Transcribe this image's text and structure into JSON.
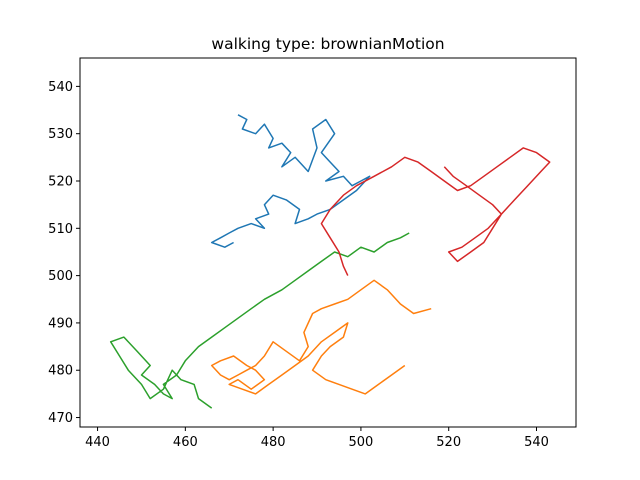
{
  "chart_data": {
    "type": "line",
    "title": "walking type: brownianMotion",
    "xlabel": "",
    "ylabel": "",
    "xlim": [
      436,
      549
    ],
    "ylim": [
      468,
      546
    ],
    "xticks": [
      440,
      460,
      480,
      500,
      520,
      540
    ],
    "yticks": [
      470,
      480,
      490,
      500,
      510,
      520,
      530,
      540
    ],
    "grid": false,
    "legend": "none",
    "series": [
      {
        "color": "#1f77b4",
        "x": [
          472,
          474,
          473,
          476,
          478,
          480,
          479,
          482,
          484,
          482,
          485,
          488,
          490,
          489,
          492,
          494,
          491,
          493,
          495,
          492,
          496,
          498,
          500,
          502,
          499,
          496,
          493,
          490,
          488,
          485,
          486,
          483,
          480,
          478,
          479,
          476,
          478,
          475,
          472,
          470,
          468,
          466,
          469,
          471
        ],
        "y": [
          534,
          533,
          531,
          530,
          532,
          529,
          527,
          528,
          526,
          523,
          525,
          522,
          527,
          531,
          533,
          530,
          526,
          524,
          522,
          520,
          521,
          519,
          520,
          521,
          518,
          516,
          514,
          513,
          512,
          511,
          514,
          516,
          517,
          515,
          513,
          512,
          510,
          511,
          510,
          509,
          508,
          507,
          506,
          507
        ]
      },
      {
        "color": "#ff7f0e",
        "x": [
          516,
          512,
          509,
          506,
          503,
          500,
          497,
          494,
          491,
          489,
          487,
          488,
          486,
          483,
          480,
          478,
          476,
          474,
          472,
          470,
          468,
          466,
          468,
          471,
          474,
          476,
          478,
          475,
          472,
          470,
          473,
          476,
          479,
          482,
          485,
          488,
          491,
          494,
          497,
          496,
          493,
          491,
          489,
          492,
          495,
          498,
          501,
          504,
          507,
          510
        ],
        "y": [
          493,
          492,
          494,
          497,
          499,
          497,
          495,
          494,
          493,
          492,
          488,
          485,
          482,
          484,
          486,
          483,
          481,
          480,
          479,
          478,
          479,
          481,
          482,
          483,
          481,
          480,
          478,
          476,
          478,
          477,
          476,
          475,
          477,
          479,
          481,
          483,
          486,
          488,
          490,
          487,
          485,
          483,
          480,
          478,
          477,
          476,
          475,
          477,
          479,
          481
        ]
      },
      {
        "color": "#2ca02c",
        "x": [
          466,
          463,
          462,
          459,
          457,
          455,
          452,
          450,
          447,
          445,
          443,
          446,
          449,
          452,
          450,
          453,
          455,
          457,
          455,
          458,
          460,
          463,
          466,
          469,
          472,
          475,
          478,
          482,
          485,
          488,
          491,
          494,
          497,
          500,
          503,
          506,
          509,
          511
        ],
        "y": [
          472,
          474,
          477,
          478,
          480,
          476,
          474,
          477,
          480,
          483,
          486,
          487,
          484,
          481,
          479,
          477,
          475,
          474,
          477,
          479,
          482,
          485,
          487,
          489,
          491,
          493,
          495,
          497,
          499,
          501,
          503,
          505,
          504,
          506,
          505,
          507,
          508,
          509
        ]
      },
      {
        "color": "#d62728",
        "x": [
          497,
          496,
          495,
          493,
          491,
          493,
          496,
          499,
          503,
          507,
          510,
          513,
          516,
          519,
          522,
          525,
          528,
          531,
          534,
          537,
          540,
          543,
          541,
          538,
          535,
          532,
          529,
          526,
          523,
          520,
          522,
          525,
          528,
          530,
          532,
          530,
          527,
          524,
          521,
          519
        ],
        "y": [
          500,
          502,
          505,
          508,
          511,
          514,
          517,
          519,
          521,
          523,
          525,
          524,
          522,
          520,
          518,
          519,
          521,
          523,
          525,
          527,
          526,
          524,
          522,
          519,
          516,
          513,
          510,
          508,
          506,
          505,
          503,
          505,
          507,
          510,
          513,
          515,
          517,
          519,
          521,
          523
        ]
      }
    ]
  }
}
